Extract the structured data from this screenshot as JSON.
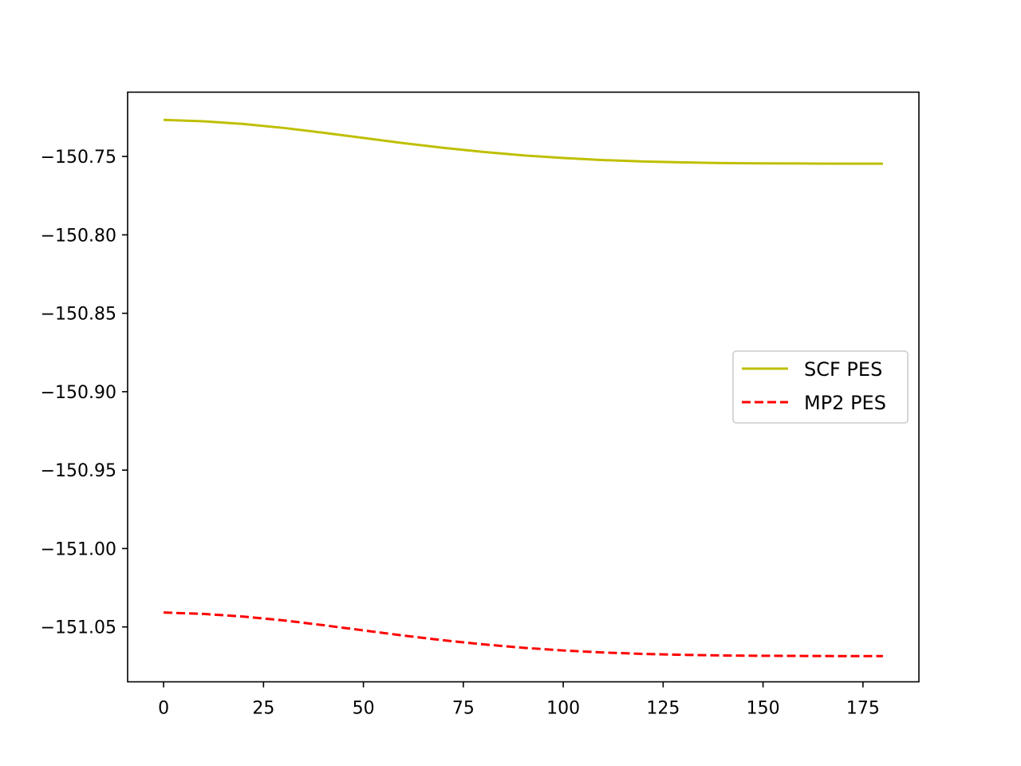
{
  "chart_data": {
    "type": "line",
    "title": "",
    "xlabel": "",
    "ylabel": "",
    "xlim": [
      -9,
      189
    ],
    "ylim": [
      -151.085,
      -150.709
    ],
    "xticks": [
      0,
      25,
      50,
      75,
      100,
      125,
      150,
      175
    ],
    "yticks": [
      -150.75,
      -150.8,
      -150.85,
      -150.9,
      -150.95,
      -151.0,
      -151.05
    ],
    "x_tick_labels": [
      "0",
      "25",
      "50",
      "75",
      "100",
      "125",
      "150",
      "175"
    ],
    "y_tick_labels": [
      "−150.75",
      "−150.80",
      "−150.85",
      "−150.90",
      "−150.95",
      "−151.00",
      "−151.05"
    ],
    "grid": false,
    "legend_position": "center-right",
    "series": [
      {
        "name": "SCF PES",
        "color": "#bfbf00",
        "style": "solid",
        "x": [
          0,
          10,
          20,
          30,
          40,
          50,
          60,
          70,
          80,
          90,
          100,
          110,
          120,
          130,
          140,
          150,
          160,
          170,
          180
        ],
        "y": [
          -150.7267,
          -150.7276,
          -150.7293,
          -150.7318,
          -150.7349,
          -150.7382,
          -150.7415,
          -150.7445,
          -150.7471,
          -150.7493,
          -150.751,
          -150.7523,
          -150.7532,
          -150.7538,
          -150.7542,
          -150.7544,
          -150.7545,
          -150.7546,
          -150.7546
        ]
      },
      {
        "name": "MP2 PES",
        "color": "#ff0000",
        "style": "dashed",
        "x": [
          0,
          10,
          20,
          30,
          40,
          50,
          60,
          70,
          80,
          90,
          100,
          110,
          120,
          130,
          140,
          150,
          160,
          170,
          180
        ],
        "y": [
          -151.0408,
          -151.0417,
          -151.0434,
          -151.0458,
          -151.0489,
          -151.0522,
          -151.0555,
          -151.0585,
          -151.0611,
          -151.0633,
          -151.065,
          -151.0663,
          -151.0672,
          -151.0678,
          -151.0682,
          -151.0684,
          -151.0685,
          -151.0686,
          -151.0686
        ]
      }
    ]
  }
}
